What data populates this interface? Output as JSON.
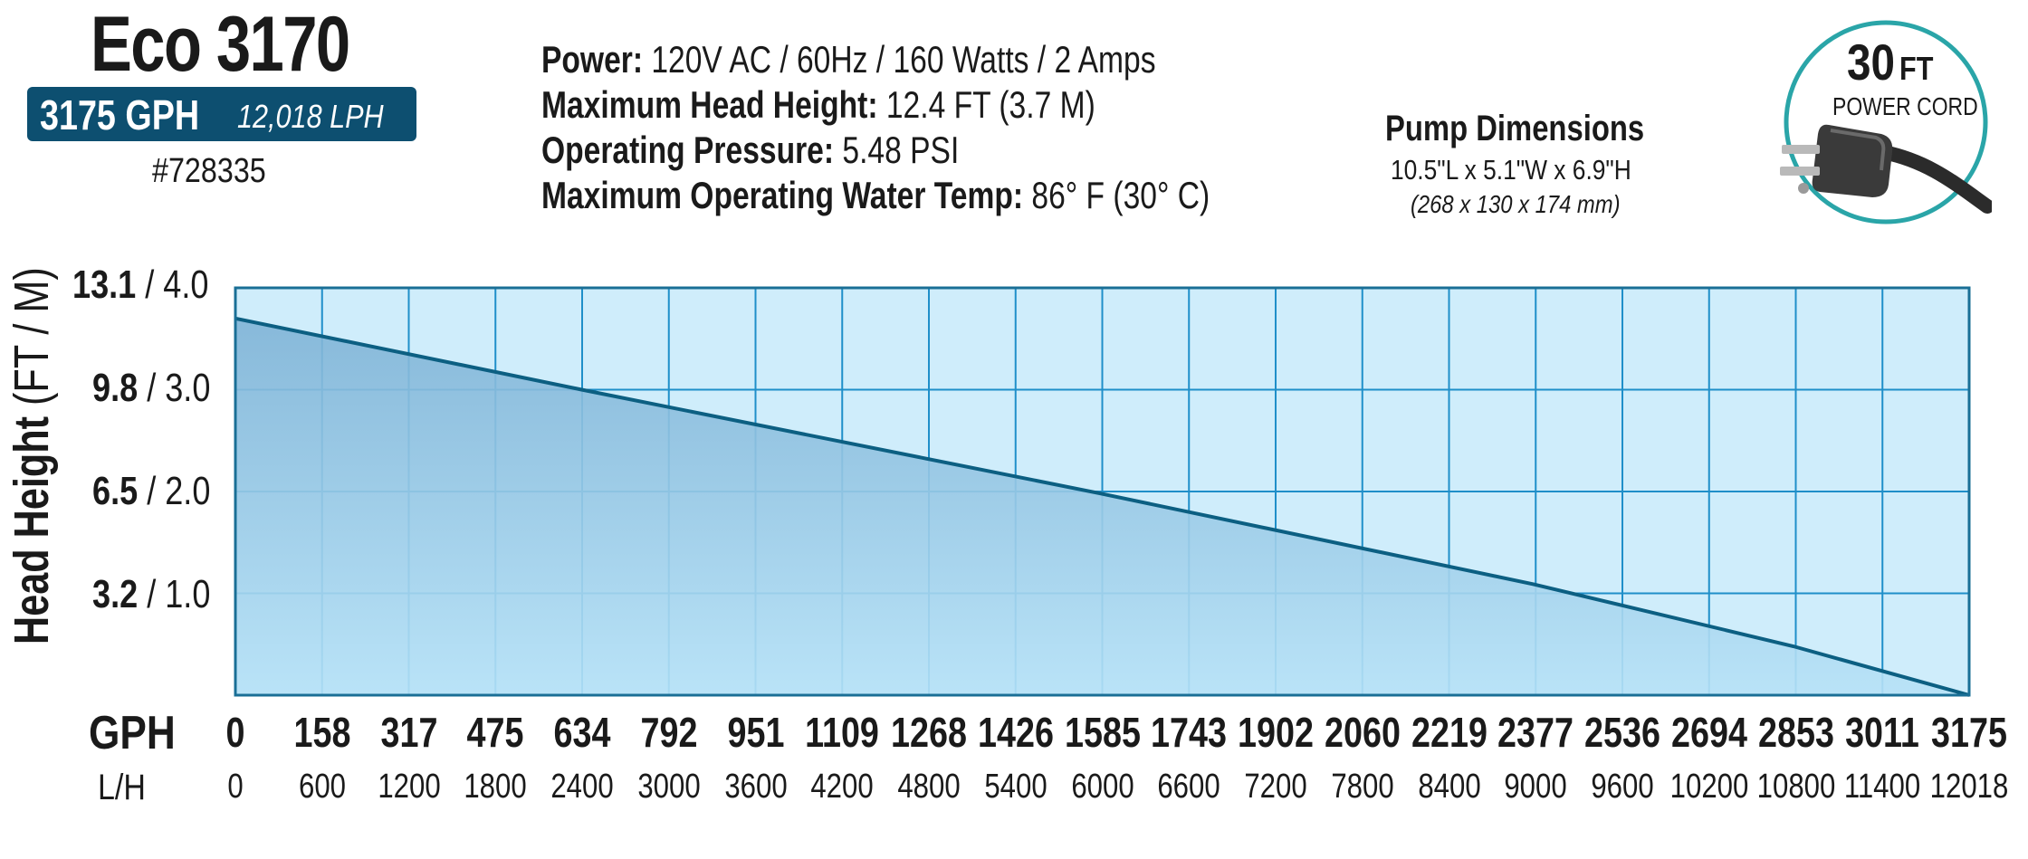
{
  "product": {
    "model": "Eco 3170",
    "flow_gph": "3175 GPH",
    "flow_lph": "12,018 LPH",
    "part_number": "#728335"
  },
  "specs": [
    {
      "label": "Power:",
      "value": "120V AC / 60Hz / 160 Watts / 2 Amps"
    },
    {
      "label": "Maximum Head Height:",
      "value": "12.4 FT (3.7 M)"
    },
    {
      "label": "Operating Pressure:",
      "value": "5.48 PSI"
    },
    {
      "label": "Maximum Operating Water Temp:",
      "value": "86° F (30° C)"
    }
  ],
  "dimensions": {
    "title": "Pump Dimensions",
    "imperial": "10.5\"L x 5.1\"W x 6.9\"H",
    "metric": "(268 x 130 x 174 mm)"
  },
  "cord": {
    "length": "30",
    "unit": "FT",
    "label": "POWER CORD",
    "icon": "power-plug-icon"
  },
  "colors": {
    "badge": "#0d4f70",
    "plot_bg": "#cfedfb",
    "grid": "#1f8fc9",
    "curve": "#0c5f82",
    "area_top": "#7fb3d6",
    "area_bottom": "#b7e2f7",
    "cord_ring": "#2aa5a8"
  },
  "chart_data": {
    "type": "area",
    "ylabel": "Head Height",
    "ylabel_unit": "(FT / M)",
    "xlabel_primary": "GPH",
    "xlabel_secondary": "L/H",
    "y_ticks_ft": [
      "13.1",
      "9.8",
      "6.5",
      "3.2"
    ],
    "y_ticks_m": [
      "/ 4.0",
      "/ 3.0",
      "/ 2.0",
      "/ 1.0"
    ],
    "y_tick_values_m": [
      4.0,
      3.0,
      2.0,
      1.0
    ],
    "ylim_m": [
      0,
      4.0
    ],
    "x_ticks_gph": [
      "0",
      "158",
      "317",
      "475",
      "634",
      "792",
      "951",
      "1109",
      "1268",
      "1426",
      "1585",
      "1743",
      "1902",
      "2060",
      "2219",
      "2377",
      "2536",
      "2694",
      "2853",
      "3011",
      "3175"
    ],
    "x_ticks_lph": [
      "0",
      "600",
      "1200",
      "1800",
      "2400",
      "3000",
      "3600",
      "4200",
      "4800",
      "5400",
      "6000",
      "6600",
      "7200",
      "7800",
      "8400",
      "9000",
      "9600",
      "10200",
      "10800",
      "11400",
      "12018"
    ],
    "xlim_gph": [
      0,
      3175
    ],
    "grid": true,
    "series": [
      {
        "x_gph": [
          0,
          634,
          1585,
          2377,
          2853,
          3175
        ],
        "y_m": [
          3.7,
          3.0,
          1.98,
          1.09,
          0.48,
          0.0
        ]
      }
    ]
  }
}
